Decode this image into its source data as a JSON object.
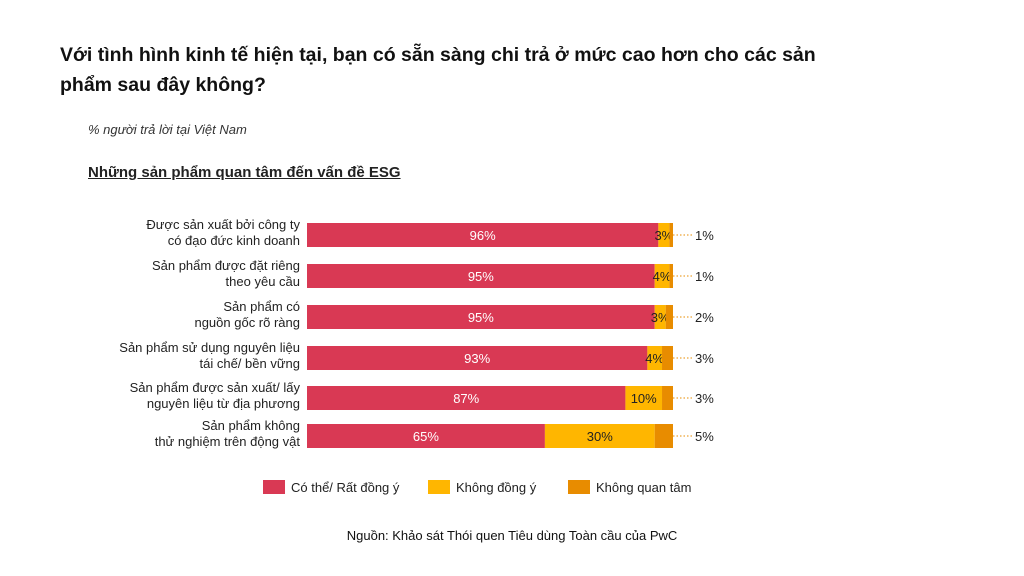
{
  "title": "Với tình hình kinh tế hiện tại, bạn có sẵn sàng chi trả ở mức cao hơn cho các sản phẩm sau đây không?",
  "subtitle": "% người trả lời tại Việt Nam",
  "section_title": "Những sản phẩm quan tâm đến vấn đề ESG",
  "source": "Nguồn: Khảo sát Thói quen Tiêu dùng Toàn cầu của PwC",
  "chart_data": {
    "type": "bar",
    "orientation": "horizontal",
    "stacked": true,
    "categories": [
      [
        "Được sản xuất bởi công ty",
        "có đạo đức kinh doanh"
      ],
      [
        "Sản phẩm được đặt riêng",
        "theo yêu cầu"
      ],
      [
        "Sản phẩm có",
        "nguồn gốc rõ ràng"
      ],
      [
        "Sản phẩm sử dụng nguyên liệu",
        "tái chế/ bền vững"
      ],
      [
        "Sản phẩm được sản xuất/ lấy",
        "nguyên liệu từ địa phương"
      ],
      [
        "Sản phẩm không",
        "thử nghiệm trên động vật"
      ]
    ],
    "series": [
      {
        "name": "Có thể/ Rất đồng ý",
        "color": "#D93954",
        "values": [
          96,
          95,
          95,
          93,
          87,
          65
        ]
      },
      {
        "name": "Không đồng ý",
        "color": "#FFB600",
        "values": [
          3,
          4,
          3,
          4,
          10,
          30
        ]
      },
      {
        "name": "Không quan tâm",
        "color": "#E88C00",
        "values": [
          1,
          1,
          2,
          3,
          3,
          5
        ]
      }
    ],
    "unit": "%",
    "legend": "bottom",
    "grid": false
  }
}
